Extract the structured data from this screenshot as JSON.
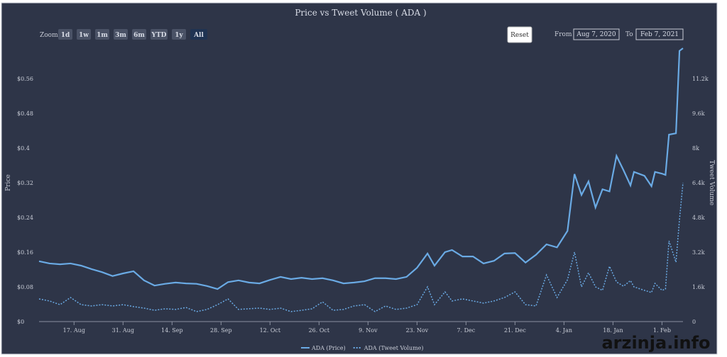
{
  "ui": {
    "zoom_label": "Zoom",
    "zoom_buttons": [
      "1d",
      "1w",
      "1m",
      "3m",
      "6m",
      "YTD",
      "1y",
      "All"
    ],
    "reset": "Reset",
    "from_label": "From",
    "from_value": "Aug 7, 2020",
    "to_label": "To",
    "to_value": "Feb 7, 2021",
    "watermark": "arzinja.info"
  },
  "chart_data": {
    "type": "line",
    "title": "Price vs Tweet Volume ( ADA )",
    "y_label": "Price",
    "y2_label": "Tweet Volume",
    "x": [
      "2020-08-07",
      "2020-08-10",
      "2020-08-13",
      "2020-08-16",
      "2020-08-19",
      "2020-08-22",
      "2020-08-25",
      "2020-08-28",
      "2020-08-31",
      "2020-09-03",
      "2020-09-06",
      "2020-09-09",
      "2020-09-12",
      "2020-09-15",
      "2020-09-18",
      "2020-09-21",
      "2020-09-24",
      "2020-09-27",
      "2020-09-30",
      "2020-10-03",
      "2020-10-06",
      "2020-10-09",
      "2020-10-12",
      "2020-10-15",
      "2020-10-18",
      "2020-10-21",
      "2020-10-24",
      "2020-10-27",
      "2020-10-30",
      "2020-11-02",
      "2020-11-05",
      "2020-11-08",
      "2020-11-11",
      "2020-11-14",
      "2020-11-17",
      "2020-11-20",
      "2020-11-23",
      "2020-11-26",
      "2020-11-28",
      "2020-12-01",
      "2020-12-03",
      "2020-12-06",
      "2020-12-09",
      "2020-12-12",
      "2020-12-15",
      "2020-12-18",
      "2020-12-21",
      "2020-12-24",
      "2020-12-27",
      "2020-12-30",
      "2021-01-02",
      "2021-01-05",
      "2021-01-07",
      "2021-01-09",
      "2021-01-11",
      "2021-01-13",
      "2021-01-15",
      "2021-01-17",
      "2021-01-19",
      "2021-01-21",
      "2021-01-23",
      "2021-01-24",
      "2021-01-27",
      "2021-01-29",
      "2021-01-30",
      "2021-02-01",
      "2021-02-02",
      "2021-02-03",
      "2021-02-05",
      "2021-02-06",
      "2021-02-07"
    ],
    "xlim": [
      "2020-08-07",
      "2021-02-07"
    ],
    "xticks": [
      {
        "value": "2020-08-17",
        "label": "17. Aug"
      },
      {
        "value": "2020-08-31",
        "label": "31. Aug"
      },
      {
        "value": "2020-09-14",
        "label": "14. Sep"
      },
      {
        "value": "2020-09-28",
        "label": "28. Sep"
      },
      {
        "value": "2020-10-12",
        "label": "12. Oct"
      },
      {
        "value": "2020-10-26",
        "label": "26. Oct"
      },
      {
        "value": "2020-11-09",
        "label": "9. Nov"
      },
      {
        "value": "2020-11-23",
        "label": "23. Nov"
      },
      {
        "value": "2020-12-07",
        "label": "7. Dec"
      },
      {
        "value": "2020-12-21",
        "label": "21. Dec"
      },
      {
        "value": "2021-01-04",
        "label": "4. Jan"
      },
      {
        "value": "2021-01-18",
        "label": "18. Jan"
      },
      {
        "value": "2021-02-01",
        "label": "1. Feb"
      }
    ],
    "ylim": [
      0,
      0.64
    ],
    "yticks": [
      {
        "value": 0,
        "label": "$0"
      },
      {
        "value": 0.08,
        "label": "$0.08"
      },
      {
        "value": 0.16,
        "label": "$0.16"
      },
      {
        "value": 0.24,
        "label": "$0.24"
      },
      {
        "value": 0.32,
        "label": "$0.32"
      },
      {
        "value": 0.4,
        "label": "$0.4"
      },
      {
        "value": 0.48,
        "label": "$0.48"
      },
      {
        "value": 0.56,
        "label": "$0.56"
      }
    ],
    "y2lim": [
      0,
      12800
    ],
    "y2ticks": [
      0,
      {
        "value": 1600,
        "label": "1.6k"
      },
      {
        "value": 3200,
        "label": "3.2k"
      },
      {
        "value": 4800,
        "label": "4.8k"
      },
      {
        "value": 6400,
        "label": "6.4k"
      },
      {
        "value": 8000,
        "label": "8k"
      },
      {
        "value": 9600,
        "label": "9.6k"
      },
      {
        "value": 11200,
        "label": "11.2k"
      }
    ],
    "grid": false,
    "series": [
      {
        "name": "ADA (Price)",
        "color": "#6aaae4",
        "dash": false,
        "values": [
          0.139,
          0.134,
          0.132,
          0.134,
          0.129,
          0.121,
          0.114,
          0.105,
          0.111,
          0.116,
          0.095,
          0.083,
          0.087,
          0.09,
          0.088,
          0.087,
          0.082,
          0.075,
          0.091,
          0.095,
          0.09,
          0.088,
          0.096,
          0.103,
          0.098,
          0.101,
          0.098,
          0.1,
          0.095,
          0.088,
          0.09,
          0.093,
          0.1,
          0.1,
          0.098,
          0.103,
          0.124,
          0.157,
          0.129,
          0.16,
          0.165,
          0.15,
          0.15,
          0.134,
          0.14,
          0.157,
          0.158,
          0.136,
          0.154,
          0.178,
          0.171,
          0.209,
          0.34,
          0.292,
          0.323,
          0.263,
          0.305,
          0.3,
          0.382,
          0.349,
          0.314,
          0.345,
          0.336,
          0.312,
          0.345,
          0.341,
          0.338,
          0.431,
          0.434,
          0.624,
          0.63
        ]
      },
      {
        "name": "ADA (Tweet Volume)",
        "color": "#6aaae4",
        "dash": true,
        "axis": "y2",
        "values": [
          1045,
          950,
          780,
          1110,
          780,
          720,
          780,
          720,
          780,
          690,
          620,
          520,
          590,
          560,
          650,
          460,
          560,
          780,
          1045,
          560,
          590,
          620,
          560,
          620,
          460,
          520,
          590,
          910,
          520,
          560,
          720,
          780,
          460,
          720,
          560,
          620,
          780,
          1600,
          780,
          1370,
          950,
          1045,
          950,
          850,
          950,
          1110,
          1370,
          780,
          720,
          2150,
          1110,
          1930,
          3200,
          1600,
          2250,
          1600,
          1440,
          2550,
          1830,
          1630,
          1890,
          1600,
          1440,
          1340,
          1760,
          1440,
          1500,
          3720,
          2740,
          4700,
          6400
        ]
      }
    ]
  }
}
